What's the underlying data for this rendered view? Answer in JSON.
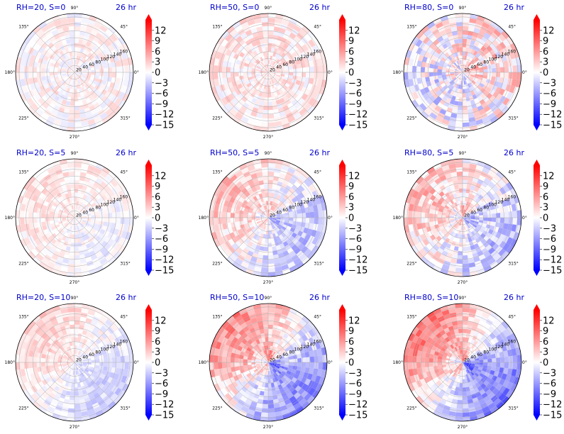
{
  "colormap": {
    "name": "bwr",
    "low": "#0000ff",
    "mid": "#ffffff",
    "high": "#ff0000"
  },
  "chart_data": [
    {
      "type": "heatmap",
      "projection": "polar",
      "title": "RH=20, S=0",
      "time_label": "26 hr",
      "angle_ticks": [
        "0°",
        "45°",
        "90°",
        "135°",
        "180°",
        "225°",
        "270°",
        "315°"
      ],
      "radial_ticks": [
        "20",
        "40",
        "60",
        "80",
        "100",
        "120",
        "140",
        "160"
      ],
      "r_max": 170,
      "pattern": {
        "lobe": 0.0,
        "phase": 0,
        "noise": 0.7,
        "bias": 0.4,
        "core": 0.0
      },
      "colorbar": {
        "vmin": -15,
        "vmax": 15,
        "ticks": [
          "12",
          "9",
          "6",
          "3",
          "0",
          "−3",
          "−6",
          "−9",
          "−12",
          "−15"
        ]
      }
    },
    {
      "type": "heatmap",
      "projection": "polar",
      "title": "RH=50, S=0",
      "time_label": "26 hr",
      "angle_ticks": [
        "0°",
        "45°",
        "90°",
        "135°",
        "180°",
        "225°",
        "270°",
        "315°"
      ],
      "radial_ticks": [
        "20",
        "40",
        "60",
        "80",
        "100",
        "120",
        "140",
        "160"
      ],
      "r_max": 170,
      "pattern": {
        "lobe": 0.0,
        "phase": 0,
        "noise": 0.8,
        "bias": 1.2,
        "core": 0.0
      },
      "colorbar": {
        "vmin": -15,
        "vmax": 15,
        "ticks": [
          "12",
          "9",
          "6",
          "3",
          "0",
          "−3",
          "−6",
          "−9",
          "−12",
          "−15"
        ]
      }
    },
    {
      "type": "heatmap",
      "projection": "polar",
      "title": "RH=80, S=0",
      "time_label": "26 hr",
      "angle_ticks": [
        "0°",
        "45°",
        "90°",
        "135°",
        "180°",
        "225°",
        "270°",
        "315°"
      ],
      "radial_ticks": [
        "20",
        "40",
        "60",
        "80",
        "100",
        "120",
        "140",
        "160"
      ],
      "r_max": 170,
      "pattern": {
        "lobe": 1.8,
        "phase": 0.6,
        "noise": 1.6,
        "bias": 0.3,
        "core": 3.0
      },
      "colorbar": {
        "vmin": -15,
        "vmax": 15,
        "ticks": [
          "12",
          "9",
          "6",
          "3",
          "0",
          "−3",
          "−6",
          "−9",
          "−12",
          "−15"
        ]
      }
    },
    {
      "type": "heatmap",
      "projection": "polar",
      "title": "RH=20, S=5",
      "time_label": "26 hr",
      "angle_ticks": [
        "0°",
        "45°",
        "90°",
        "135°",
        "180°",
        "225°",
        "270°",
        "315°"
      ],
      "radial_ticks": [
        "20",
        "40",
        "60",
        "80",
        "100",
        "120",
        "140",
        "160"
      ],
      "r_max": 170,
      "pattern": {
        "lobe": 1.2,
        "phase": 2.4,
        "noise": 0.6,
        "bias": 0.5,
        "core": 0.0
      },
      "colorbar": {
        "vmin": -15,
        "vmax": 15,
        "ticks": [
          "12",
          "9",
          "6",
          "3",
          "0",
          "−3",
          "−6",
          "−9",
          "−12",
          "−15"
        ]
      }
    },
    {
      "type": "heatmap",
      "projection": "polar",
      "title": "RH=50, S=5",
      "time_label": "26 hr",
      "angle_ticks": [
        "0°",
        "45°",
        "90°",
        "135°",
        "180°",
        "225°",
        "270°",
        "315°"
      ],
      "radial_ticks": [
        "20",
        "40",
        "60",
        "80",
        "100",
        "120",
        "140",
        "160"
      ],
      "r_max": 170,
      "pattern": {
        "lobe": 3.8,
        "phase": 2.6,
        "noise": 1.0,
        "bias": 0.0,
        "core": 5.0
      },
      "colorbar": {
        "vmin": -15,
        "vmax": 15,
        "ticks": [
          "12",
          "9",
          "6",
          "3",
          "0",
          "−3",
          "−6",
          "−9",
          "−12",
          "−15"
        ]
      }
    },
    {
      "type": "heatmap",
      "projection": "polar",
      "title": "RH=80, S=5",
      "time_label": "26 hr",
      "angle_ticks": [
        "0°",
        "45°",
        "90°",
        "135°",
        "180°",
        "225°",
        "270°",
        "315°"
      ],
      "radial_ticks": [
        "20",
        "40",
        "60",
        "80",
        "100",
        "120",
        "140",
        "160"
      ],
      "r_max": 170,
      "pattern": {
        "lobe": 3.6,
        "phase": 2.6,
        "noise": 1.2,
        "bias": 0.0,
        "core": 6.0
      },
      "colorbar": {
        "vmin": -15,
        "vmax": 15,
        "ticks": [
          "12",
          "9",
          "6",
          "3",
          "0",
          "−3",
          "−6",
          "−9",
          "−12",
          "−15"
        ]
      }
    },
    {
      "type": "heatmap",
      "projection": "polar",
      "title": "RH=20, S=10",
      "time_label": "26 hr",
      "angle_ticks": [
        "0°",
        "45°",
        "90°",
        "135°",
        "180°",
        "225°",
        "270°",
        "315°"
      ],
      "radial_ticks": [
        "20",
        "40",
        "60",
        "80",
        "100",
        "120",
        "140",
        "160"
      ],
      "r_max": 170,
      "pattern": {
        "lobe": 2.8,
        "phase": 2.4,
        "noise": 0.6,
        "bias": 0.0,
        "core": 0.0
      },
      "colorbar": {
        "vmin": -15,
        "vmax": 15,
        "ticks": [
          "12",
          "9",
          "6",
          "3",
          "0",
          "−3",
          "−6",
          "−9",
          "−12",
          "−15"
        ]
      }
    },
    {
      "type": "heatmap",
      "projection": "polar",
      "title": "RH=50, S=10",
      "time_label": "26 hr",
      "angle_ticks": [
        "0°",
        "45°",
        "90°",
        "135°",
        "180°",
        "225°",
        "270°",
        "315°"
      ],
      "radial_ticks": [
        "20",
        "40",
        "60",
        "80",
        "100",
        "120",
        "140",
        "160"
      ],
      "r_max": 170,
      "pattern": {
        "lobe": 7.0,
        "phase": 2.4,
        "noise": 1.0,
        "bias": 0.0,
        "core": 8.0
      },
      "colorbar": {
        "vmin": -15,
        "vmax": 15,
        "ticks": [
          "12",
          "9",
          "6",
          "3",
          "0",
          "−3",
          "−6",
          "−9",
          "−12",
          "−15"
        ]
      }
    },
    {
      "type": "heatmap",
      "projection": "polar",
      "title": "RH=80, S=10",
      "time_label": "26 hr",
      "angle_ticks": [
        "0°",
        "45°",
        "90°",
        "135°",
        "180°",
        "225°",
        "270°",
        "315°"
      ],
      "radial_ticks": [
        "20",
        "40",
        "60",
        "80",
        "100",
        "120",
        "140",
        "160"
      ],
      "r_max": 170,
      "pattern": {
        "lobe": 8.0,
        "phase": 2.5,
        "noise": 0.9,
        "bias": 0.0,
        "core": 9.0
      },
      "colorbar": {
        "vmin": -15,
        "vmax": 15,
        "ticks": [
          "12",
          "9",
          "6",
          "3",
          "0",
          "−3",
          "−6",
          "−9",
          "−12",
          "−15"
        ]
      }
    }
  ]
}
